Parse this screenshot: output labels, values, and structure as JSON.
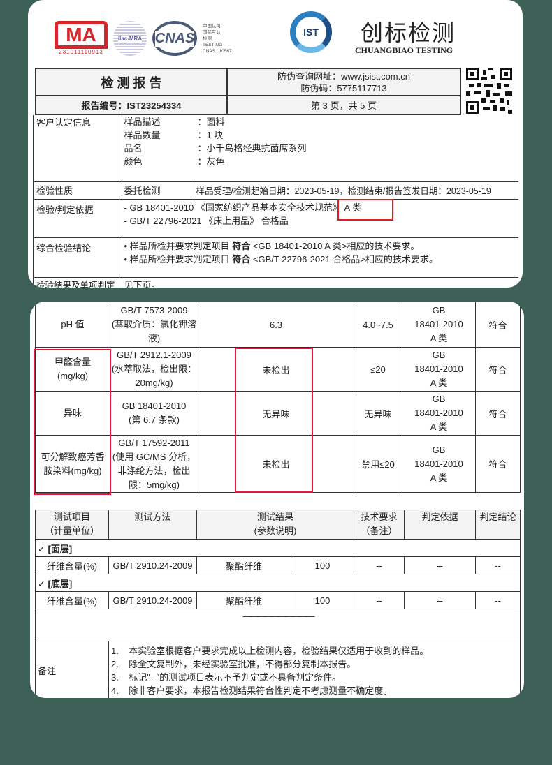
{
  "colors": {
    "background": "#3e6157",
    "highlight": "#e8173b",
    "ma_red": "#d7262b",
    "cnas_blue": "#4a5a78",
    "ist_blue": "#2b7fc0"
  },
  "logos": {
    "ma_text": "MA",
    "ma_number": "231011110913",
    "ilac_text": "ilac-MRA",
    "cnas_text": "CNAS",
    "cnas_caption": [
      "中国认可",
      "国际互认",
      "检测",
      "TESTING",
      "CNAS L10567"
    ],
    "ist_text": "IST",
    "brand_cn": "创标检测",
    "brand_en": "CHUANGBIAO TESTING"
  },
  "header": {
    "title": "检 测 报 告",
    "verify_url": "防伪查询网址：www.jsist.com.cn",
    "verify_code": "防伪码：5775117713",
    "report_no": "报告编号：IST23254334",
    "page": "第 3 页，共 5 页",
    "qr_icon": "qr-code"
  },
  "info": {
    "customer_label": "客户认定信息",
    "customer_fields": [
      {
        "k": "样品描述",
        "v": "：面料"
      },
      {
        "k": "样品数量",
        "v": "：1 块"
      },
      {
        "k": "品名",
        "v": "：小千鸟格经典抗菌席系列"
      },
      {
        "k": "颜色",
        "v": "：灰色"
      }
    ],
    "nature_label": "检验性质",
    "nature_value": "委托检测",
    "dates": "样品受理/检测起始日期：2023-05-19，检测结束/报告签发日期：2023-05-19",
    "basis_label": "检验/判定依据",
    "basis": [
      "-  GB 18401-2010 《国家纺织产品基本安全技术规范》  A 类",
      "-  GB/T 22796-2021 《床上用品》 合格品"
    ],
    "conclusion_label": "综合检验结论",
    "conclusion": [
      {
        "pre": "•  样品所检并要求判定项目 ",
        "bold": "符合",
        "post": " <GB 18401-2010 A 类>相应的技术要求。"
      },
      {
        "pre": "•  样品所检并要求判定项目 ",
        "bold": "符合",
        "post": " <GB/T 22796-2021 合格品>相应的技术要求。"
      }
    ],
    "result_label": "检验结果及单项判定",
    "result_value": "见下页。"
  },
  "results": [
    {
      "item": [
        "pH 值"
      ],
      "method": [
        "GB/T 7573-2009",
        "(萃取介质：氯化钾溶",
        "液)"
      ],
      "result": "6.3",
      "req": "4.0~7.5",
      "basis": [
        "GB",
        "18401-2010",
        "A 类"
      ],
      "verdict": "符合"
    },
    {
      "item": [
        "甲醛含量",
        "(mg/kg)"
      ],
      "method": [
        "GB/T 2912.1-2009",
        "(水萃取法，检出限：",
        "20mg/kg)"
      ],
      "result": "未检出",
      "req": "≤20",
      "basis": [
        "GB",
        "18401-2010",
        "A 类"
      ],
      "verdict": "符合"
    },
    {
      "item": [
        "异味"
      ],
      "method": [
        "GB 18401-2010",
        "(第 6.7 条款)"
      ],
      "result": "无异味",
      "req": "无异味",
      "basis": [
        "GB",
        "18401-2010",
        "A 类"
      ],
      "verdict": "符合"
    },
    {
      "item": [
        "可分解致癌芳香",
        "胺染料(mg/kg)"
      ],
      "method": [
        "GB/T 17592-2011",
        "(使用 GC/MS 分析，",
        "非涤纶方法，检出",
        "限：5mg/kg)"
      ],
      "result": "未检出",
      "req": "禁用≤20",
      "basis": [
        "GB",
        "18401-2010",
        "A 类"
      ],
      "verdict": "符合"
    }
  ],
  "fiber": {
    "headers": [
      [
        "测试项目",
        "（计量单位）"
      ],
      [
        "测试方法"
      ],
      [
        "测试结果",
        "(参数说明)"
      ],
      [
        "技术要求",
        "（备注）"
      ],
      [
        "判定依据"
      ],
      [
        "判定结论"
      ]
    ],
    "sections": [
      {
        "title": "✓   [面层]",
        "row": [
          "纤维含量(%)",
          "GB/T 2910.24-2009",
          "聚酯纤维",
          "100",
          "--",
          "--",
          "--"
        ]
      },
      {
        "title": "✓   [底层]",
        "row": [
          "纤维含量(%)",
          "GB/T 2910.24-2009",
          "聚酯纤维",
          "100",
          "--",
          "--",
          "--"
        ]
      }
    ],
    "end_line": "——————————",
    "notes_label": "备注",
    "notes": [
      "1.    本实验室根据客户要求完成以上检测内容，检验结果仅适用于收到的样品。",
      "2.    除全文复制外，未经实验室批准，不得部分复制本报告。",
      "3.    标记\"--\"的测试项目表示不予判定或不具备判定条件。",
      "4.    除非客户要求，本报告检测结果符合性判定不考虑测量不确定度。"
    ]
  }
}
